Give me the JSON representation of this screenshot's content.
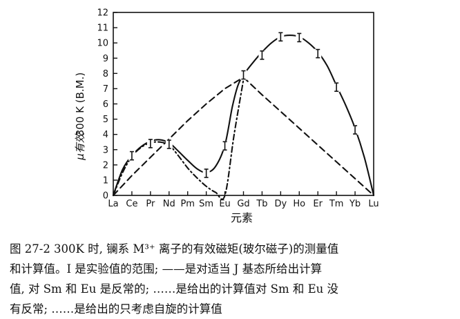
{
  "chart_data": {
    "type": "line",
    "categories": [
      "La",
      "Ce",
      "Pr",
      "Nd",
      "Pm",
      "Sm",
      "Eu",
      "Gd",
      "Tb",
      "Dy",
      "Ho",
      "Er",
      "Tm",
      "Yb",
      "Lu"
    ],
    "xlabel": "元素",
    "ylabel_main": "300 K (B.M.)",
    "ylabel_symbol": "μ有效",
    "ylim": [
      0,
      12
    ],
    "yticks": [
      0,
      1,
      2,
      3,
      4,
      5,
      6,
      7,
      8,
      9,
      10,
      11,
      12
    ],
    "grid": false,
    "series": [
      {
        "style": "solid",
        "points": [
          {
            "x": 0,
            "y": 0
          },
          {
            "x": 0.5,
            "y": 1.7
          },
          {
            "x": 1,
            "y": 2.6
          },
          {
            "x": 1.5,
            "y": 3.2
          },
          {
            "x": 2,
            "y": 3.55
          },
          {
            "x": 2.5,
            "y": 3.65
          },
          {
            "x": 3,
            "y": 3.45
          },
          {
            "x": 3.5,
            "y": 2.9
          },
          {
            "x": 4,
            "y": 2.3
          },
          {
            "x": 4.5,
            "y": 1.75
          },
          {
            "x": 5,
            "y": 1.5
          },
          {
            "x": 5.5,
            "y": 1.9
          },
          {
            "x": 6,
            "y": 3.3
          },
          {
            "x": 6.4,
            "y": 5.8
          },
          {
            "x": 6.7,
            "y": 7.2
          },
          {
            "x": 7,
            "y": 7.9
          },
          {
            "x": 7.5,
            "y": 8.7
          },
          {
            "x": 8,
            "y": 9.4
          },
          {
            "x": 8.5,
            "y": 10.0
          },
          {
            "x": 9,
            "y": 10.4
          },
          {
            "x": 9.5,
            "y": 10.5
          },
          {
            "x": 10,
            "y": 10.4
          },
          {
            "x": 10.5,
            "y": 10.0
          },
          {
            "x": 11,
            "y": 9.4
          },
          {
            "x": 11.5,
            "y": 8.5
          },
          {
            "x": 12,
            "y": 7.2
          },
          {
            "x": 12.5,
            "y": 5.9
          },
          {
            "x": 13,
            "y": 4.4
          },
          {
            "x": 13.5,
            "y": 2.5
          },
          {
            "x": 14,
            "y": 0
          }
        ]
      },
      {
        "style": "dash-dot",
        "points": [
          {
            "x": 0,
            "y": 0
          },
          {
            "x": 0.5,
            "y": 1.5
          },
          {
            "x": 1,
            "y": 2.55
          },
          {
            "x": 1.5,
            "y": 3.15
          },
          {
            "x": 2,
            "y": 3.45
          },
          {
            "x": 2.5,
            "y": 3.5
          },
          {
            "x": 3,
            "y": 3.3
          },
          {
            "x": 3.5,
            "y": 2.6
          },
          {
            "x": 4,
            "y": 1.8
          },
          {
            "x": 4.5,
            "y": 1.15
          },
          {
            "x": 5,
            "y": 0.6
          },
          {
            "x": 5.5,
            "y": 0.2
          },
          {
            "x": 6,
            "y": 0
          },
          {
            "x": 6.5,
            "y": 4.0
          },
          {
            "x": 7,
            "y": 7.6
          }
        ]
      },
      {
        "style": "dashed",
        "points": [
          {
            "x": 0,
            "y": 0
          },
          {
            "x": 1,
            "y": 1.3
          },
          {
            "x": 2,
            "y": 2.5
          },
          {
            "x": 3,
            "y": 3.7
          },
          {
            "x": 4,
            "y": 4.9
          },
          {
            "x": 5,
            "y": 6.0
          },
          {
            "x": 6,
            "y": 7.0
          },
          {
            "x": 7,
            "y": 7.75
          },
          {
            "x": 8,
            "y": 6.6
          },
          {
            "x": 9,
            "y": 5.5
          },
          {
            "x": 10,
            "y": 4.4
          },
          {
            "x": 11,
            "y": 3.3
          },
          {
            "x": 12,
            "y": 2.2
          },
          {
            "x": 13,
            "y": 1.1
          },
          {
            "x": 14,
            "y": 0
          }
        ]
      }
    ],
    "experimental_ranges": [
      {
        "x": 1,
        "y": 2.6
      },
      {
        "x": 2,
        "y": 3.4
      },
      {
        "x": 3,
        "y": 3.35
      },
      {
        "x": 5,
        "y": 1.45
      },
      {
        "x": 6,
        "y": 3.25
      },
      {
        "x": 7,
        "y": 7.9
      },
      {
        "x": 8,
        "y": 9.2
      },
      {
        "x": 9,
        "y": 10.4
      },
      {
        "x": 10,
        "y": 10.35
      },
      {
        "x": 11,
        "y": 9.3
      },
      {
        "x": 12,
        "y": 7.1
      },
      {
        "x": 13,
        "y": 4.3
      }
    ]
  },
  "caption": {
    "line1": "图 27-2   300K 时, 镧系 M³⁺ 离子的有效磁矩(玻尔磁子)的测量值",
    "line2": "和计算值。I 是实验值的范围; ——是对适当 J 基态所给出计算",
    "line3": "值, 对 Sm 和 Eu 是反常的; ……是给出的计算值对 Sm 和 Eu 没",
    "line4": "有反常; ……是给出的只考虑自旋的计算值"
  }
}
